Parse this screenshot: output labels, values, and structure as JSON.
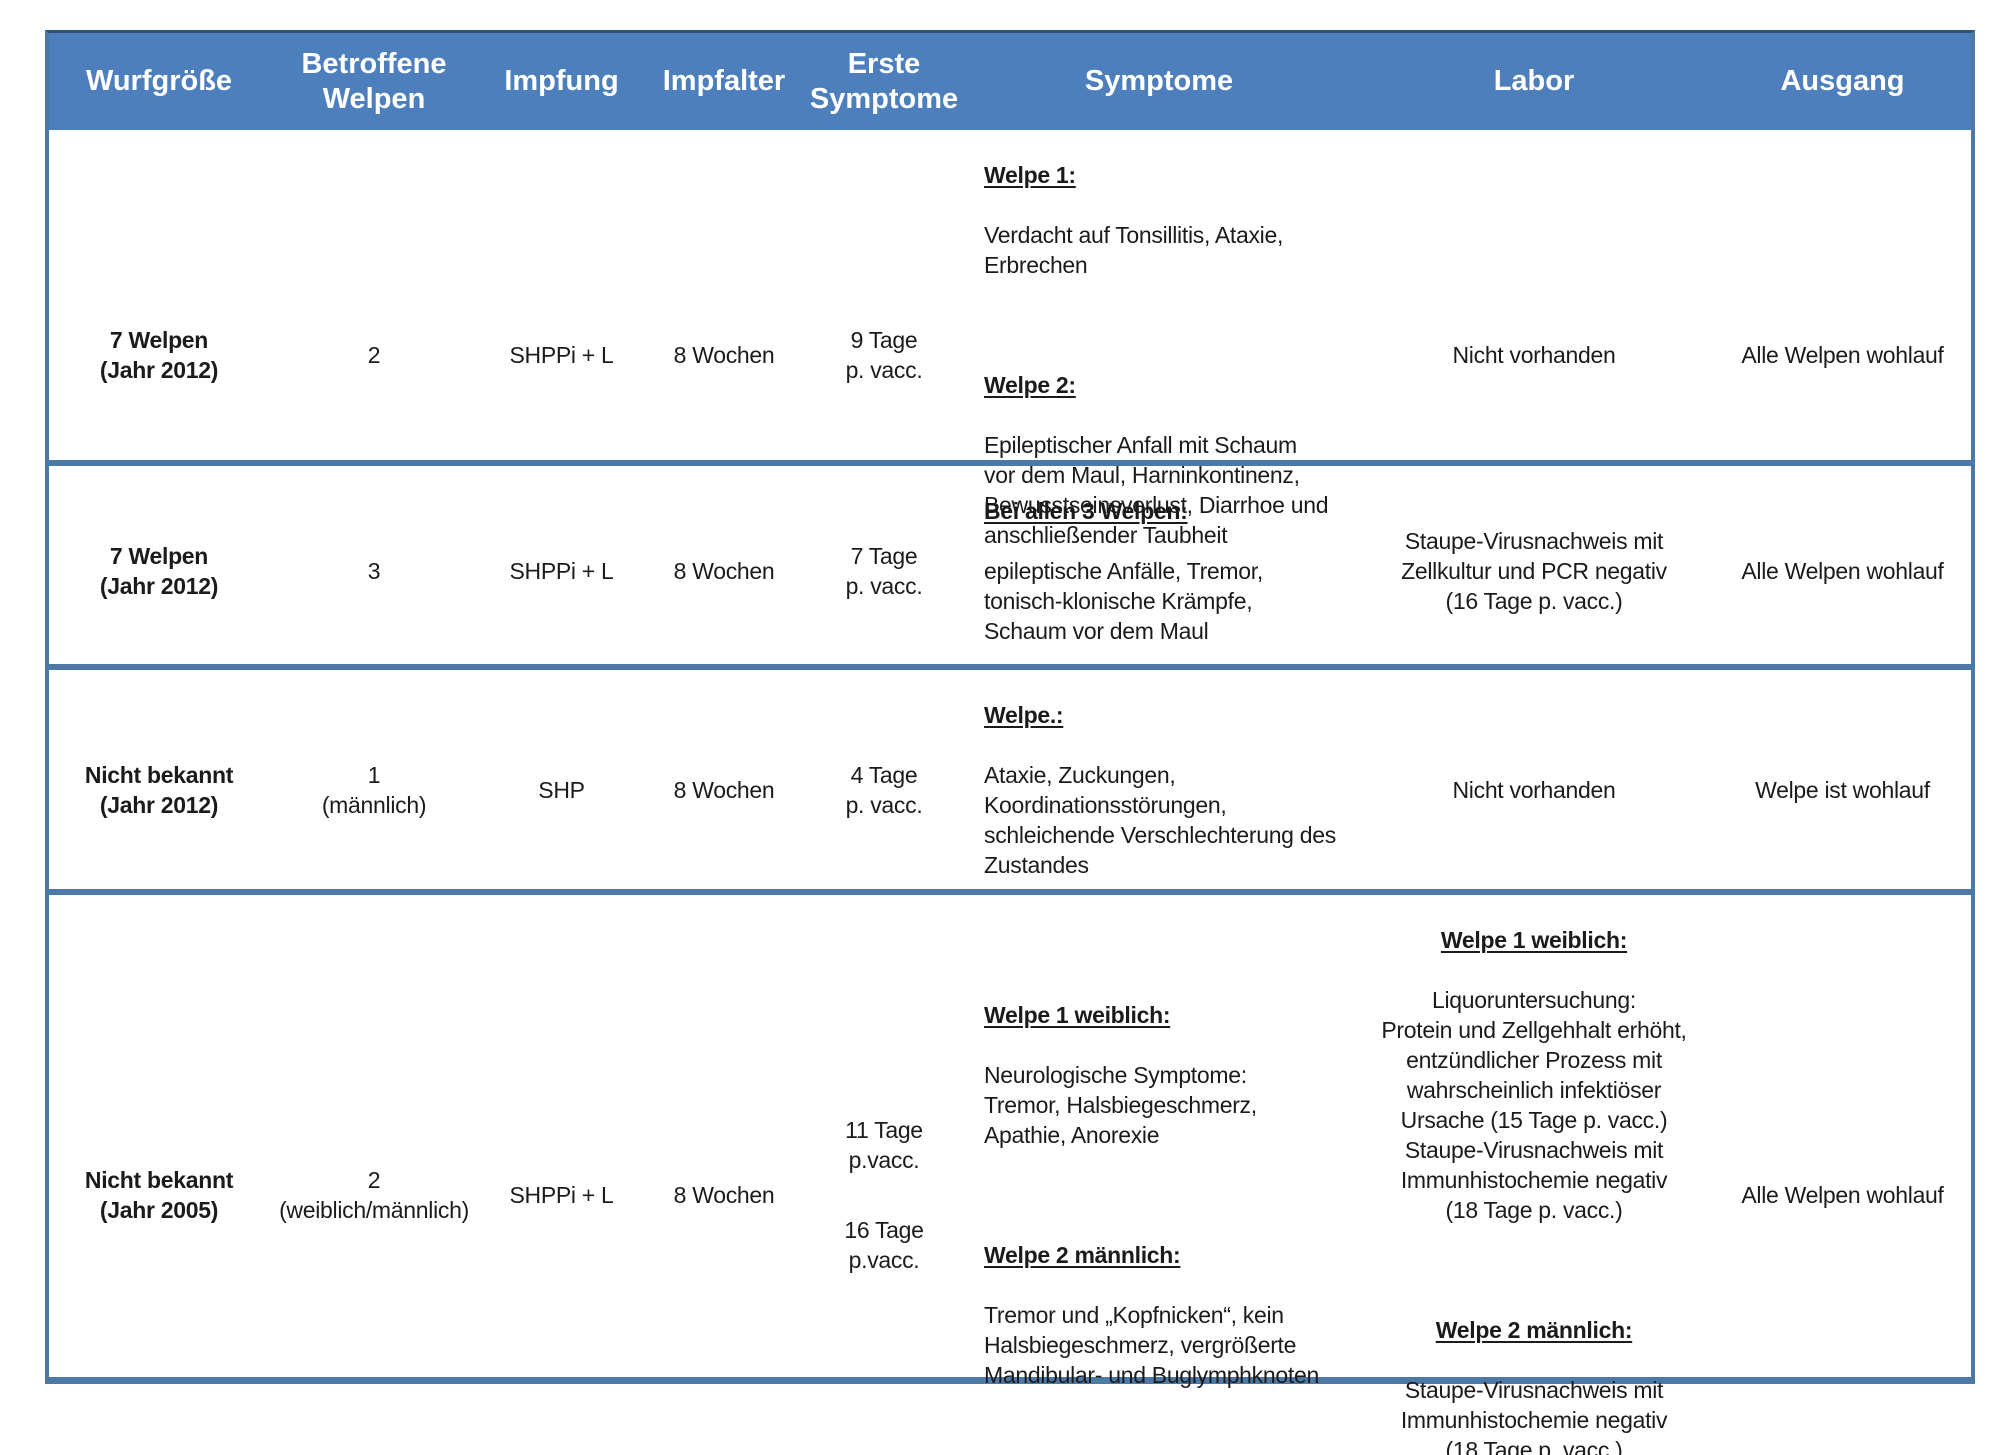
{
  "colors": {
    "header_bg": "#4e7fbd",
    "border_blue": "#4d79a7",
    "header_text": "#ffffff",
    "body_text": "#1b1b1b"
  },
  "table": {
    "columns": [
      "Wurfgröße",
      "Betroffene\nWelpen",
      "Impfung",
      "Impfalter",
      "Erste\nSymptome",
      "Symptome",
      "Labor",
      "Ausgang"
    ],
    "rows": [
      {
        "wurfgroesse": "7 Welpen\n(Jahr 2012)",
        "betroffene_welpen": "2",
        "impfung": "SHPPi + L",
        "impfalter": "8 Wochen",
        "erste_symptome": [
          "9 Tage\np. vacc."
        ],
        "symptome": [
          {
            "heading": "Welpe 1:",
            "text": "Verdacht auf Tonsillitis, Ataxie,\nErbrechen"
          },
          {
            "heading": "Welpe 2:",
            "text": "Epileptischer Anfall mit Schaum\nvor dem Maul, Harninkontinenz,\nBewusstseinsverlust, Diarrhoe und\nanschließender Taubheit"
          }
        ],
        "labor": [
          {
            "text": "Nicht vorhanden"
          }
        ],
        "ausgang": "Alle Welpen wohlauf"
      },
      {
        "wurfgroesse": "7 Welpen\n(Jahr 2012)",
        "betroffene_welpen": "3",
        "impfung": "SHPPi + L",
        "impfalter": "8 Wochen",
        "erste_symptome": [
          "7 Tage\np. vacc."
        ],
        "symptome": [
          {
            "heading": "Bei allen 3 Welpen:",
            "text": "epileptische Anfälle, Tremor,\ntonisch-klonische Krämpfe,\nSchaum vor dem Maul"
          }
        ],
        "labor": [
          {
            "text": "Staupe-Virusnachweis mit\nZellkultur und PCR negativ\n(16 Tage p. vacc.)"
          }
        ],
        "ausgang": "Alle Welpen wohlauf"
      },
      {
        "wurfgroesse": "Nicht bekannt\n(Jahr 2012)",
        "betroffene_welpen": "1\n(männlich)",
        "impfung": "SHP",
        "impfalter": "8 Wochen",
        "erste_symptome": [
          "4 Tage\np. vacc."
        ],
        "symptome": [
          {
            "heading": "Welpe.:",
            "text": "Ataxie, Zuckungen,\nKoordinationsstörungen,\nschleichende Verschlechterung des\nZustandes"
          }
        ],
        "labor": [
          {
            "text": "Nicht vorhanden"
          }
        ],
        "ausgang": "Welpe ist wohlauf"
      },
      {
        "wurfgroesse": "Nicht bekannt\n(Jahr 2005)",
        "betroffene_welpen": "2\n(weiblich/männlich)",
        "impfung": "SHPPi + L",
        "impfalter": "8 Wochen",
        "erste_symptome": [
          "11 Tage\np.vacc.",
          "16 Tage\np.vacc."
        ],
        "symptome": [
          {
            "heading": "Welpe 1 weiblich:",
            "text": "Neurologische Symptome:\nTremor, Halsbiegeschmerz,\nApathie, Anorexie"
          },
          {
            "heading": "Welpe 2 männlich:",
            "text": "Tremor und „Kopfnicken“, kein\nHalsbiegeschmerz, vergrößerte\nMandibular- und Buglymphknoten"
          }
        ],
        "labor": [
          {
            "heading": "Welpe 1 weiblich:",
            "text": "Liquoruntersuchung:\nProtein und Zellgehhalt erhöht,\nentzündlicher Prozess mit\nwahrscheinlich infektiöser\nUrsache (15 Tage p. vacc.)\nStaupe-Virusnachweis mit\nImmunhistochemie negativ\n(18 Tage p. vacc.)"
          },
          {
            "heading": "Welpe 2 männlich:",
            "text": "Staupe-Virusnachweis mit\nImmunhistochemie negativ\n(18 Tage p. vacc.)"
          }
        ],
        "ausgang": "Alle Welpen wohlauf"
      }
    ]
  }
}
